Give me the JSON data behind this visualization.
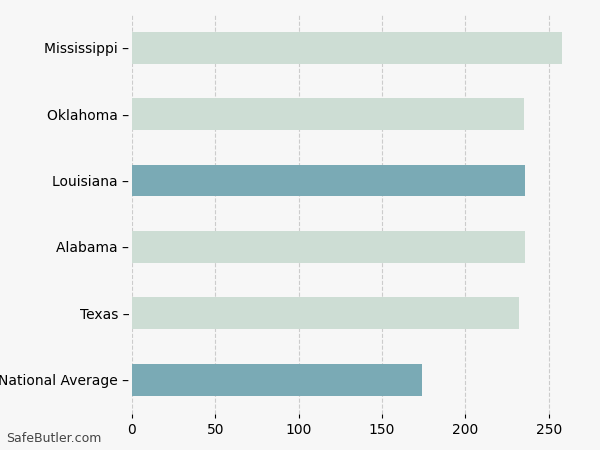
{
  "categories": [
    "Mississippi –",
    "Oklahoma –",
    "Louisiana –",
    "Alabama –",
    "Texas –",
    "National Average –"
  ],
  "values": [
    258,
    235,
    236,
    236,
    232,
    174
  ],
  "bar_colors": [
    "#cdddd4",
    "#cdddd4",
    "#7aaab5",
    "#cdddd4",
    "#cdddd4",
    "#7aaab5"
  ],
  "background_color": "#f7f7f7",
  "grid_color": "#cccccc",
  "xlim": [
    0,
    270
  ],
  "xticks": [
    0,
    50,
    100,
    150,
    200,
    250
  ],
  "watermark": "SafeButler.com",
  "tick_fontsize": 10,
  "label_fontsize": 10,
  "bar_height": 0.48
}
